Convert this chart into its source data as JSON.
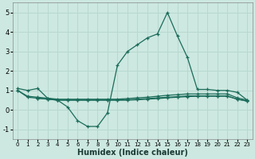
{
  "xlabel": "Humidex (Indice chaleur)",
  "background_color": "#cce8e0",
  "grid_color": "#b8d8d0",
  "line_color": "#1a6b5a",
  "xlim": [
    -0.5,
    23.5
  ],
  "ylim": [
    -1.5,
    5.5
  ],
  "xticks": [
    0,
    1,
    2,
    3,
    4,
    5,
    6,
    7,
    8,
    9,
    10,
    11,
    12,
    13,
    14,
    15,
    16,
    17,
    18,
    19,
    20,
    21,
    22,
    23
  ],
  "yticks": [
    -1,
    0,
    1,
    2,
    3,
    4,
    5
  ],
  "line1_x": [
    0,
    1,
    2,
    3,
    4,
    5,
    6,
    7,
    8,
    9,
    10,
    11,
    12,
    13,
    14,
    15,
    16,
    17,
    18,
    19,
    20,
    21,
    22,
    23
  ],
  "line1_y": [
    1.1,
    1.0,
    1.1,
    0.6,
    0.5,
    0.15,
    -0.55,
    -0.85,
    -0.85,
    -0.15,
    2.3,
    3.0,
    3.35,
    3.7,
    3.9,
    5.0,
    3.8,
    2.7,
    1.05,
    1.05,
    1.0,
    1.0,
    0.9,
    0.5
  ],
  "line2_x": [
    0,
    1,
    2,
    3,
    4,
    5,
    6,
    7,
    8,
    9,
    10,
    11,
    12,
    13,
    14,
    15,
    16,
    17,
    18,
    19,
    20,
    21,
    22,
    23
  ],
  "line2_y": [
    1.0,
    0.7,
    0.65,
    0.6,
    0.55,
    0.55,
    0.55,
    0.55,
    0.55,
    0.55,
    0.55,
    0.58,
    0.62,
    0.65,
    0.7,
    0.75,
    0.78,
    0.82,
    0.82,
    0.82,
    0.82,
    0.82,
    0.62,
    0.5
  ],
  "line3_x": [
    0,
    1,
    2,
    3,
    4,
    5,
    6,
    7,
    8,
    9,
    10,
    11,
    12,
    13,
    14,
    15,
    16,
    17,
    18,
    19,
    20,
    21,
    22,
    23
  ],
  "line3_y": [
    1.0,
    0.65,
    0.6,
    0.55,
    0.5,
    0.5,
    0.5,
    0.5,
    0.5,
    0.5,
    0.5,
    0.52,
    0.55,
    0.58,
    0.62,
    0.65,
    0.68,
    0.72,
    0.72,
    0.72,
    0.72,
    0.72,
    0.55,
    0.45
  ],
  "line4_x": [
    2,
    3,
    4,
    5,
    6,
    7,
    8,
    9,
    10,
    11,
    12,
    13,
    14,
    15,
    16,
    17,
    18,
    19,
    20,
    21,
    22,
    23
  ],
  "line4_y": [
    0.6,
    0.55,
    0.5,
    0.5,
    0.5,
    0.5,
    0.5,
    0.5,
    0.5,
    0.5,
    0.52,
    0.55,
    0.58,
    0.62,
    0.65,
    0.68,
    0.7,
    0.7,
    0.7,
    0.7,
    0.55,
    0.45
  ]
}
